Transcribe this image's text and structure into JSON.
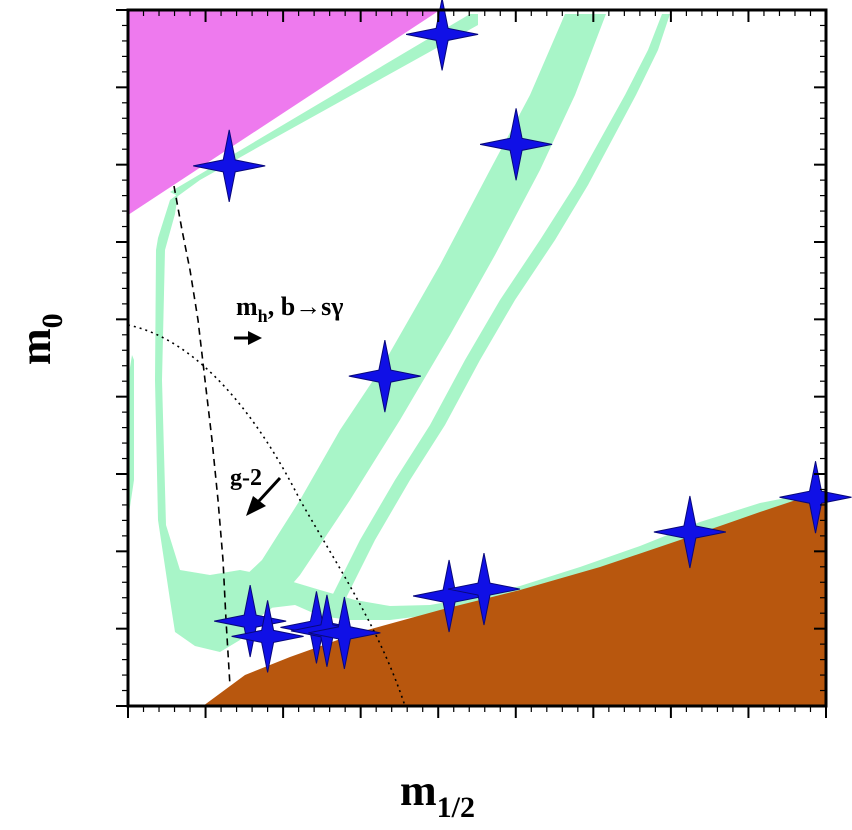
{
  "chart_data": {
    "type": "scatter",
    "title": "",
    "xlabel": "m",
    "xlabel_sub": "1/2",
    "ylabel": "m",
    "ylabel_sub": "0",
    "xlim": [
      0,
      1
    ],
    "ylim": [
      0,
      1
    ],
    "axis_tick_labels": "none",
    "grid": false,
    "regions": [
      {
        "name": "charged-LSP-excluded",
        "color": "#b8570e",
        "shape": "lower-right-wedge"
      },
      {
        "name": "no-EWSB-excluded",
        "color": "#ee7aee",
        "shape": "upper-left-wedge"
      },
      {
        "name": "WMAP-dark-matter-strips",
        "color": "#a8f5c8",
        "shape": "strips"
      }
    ],
    "constraints": [
      {
        "label": "m",
        "label_sub": "h",
        "label_rest": ", b→sγ",
        "style": "dashed",
        "arrow": "right"
      },
      {
        "label": "g-2",
        "style": "dotted",
        "arrow": "down-left"
      }
    ],
    "benchmark_points": [
      {
        "x": 0.45,
        "y": 0.965
      },
      {
        "x": 0.145,
        "y": 0.776
      },
      {
        "x": 0.556,
        "y": 0.807
      },
      {
        "x": 0.368,
        "y": 0.474
      },
      {
        "x": 0.175,
        "y": 0.122
      },
      {
        "x": 0.2,
        "y": 0.1
      },
      {
        "x": 0.27,
        "y": 0.113
      },
      {
        "x": 0.285,
        "y": 0.108
      },
      {
        "x": 0.31,
        "y": 0.105
      },
      {
        "x": 0.46,
        "y": 0.158
      },
      {
        "x": 0.51,
        "y": 0.168
      },
      {
        "x": 0.805,
        "y": 0.25
      },
      {
        "x": 0.985,
        "y": 0.3
      }
    ],
    "colors": {
      "point": "#1010e6",
      "point_edge": "#08087a",
      "brown_region": "#b8570e",
      "magenta_region": "#ee7aee",
      "green_band": "#a8f5c8"
    }
  }
}
